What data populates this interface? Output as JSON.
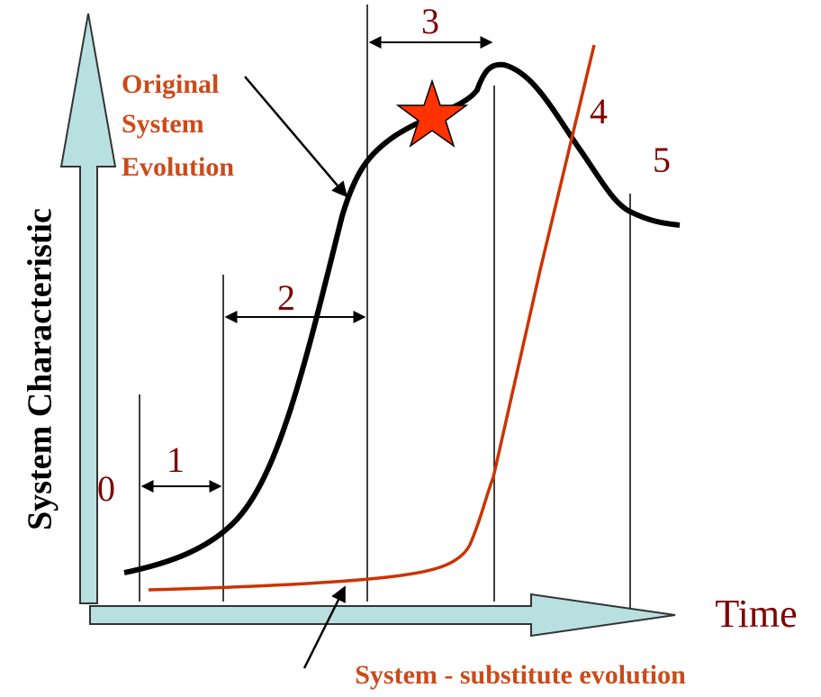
{
  "axes": {
    "y_label": "System Characteristic",
    "x_label": "Time"
  },
  "curves": [
    {
      "label": [
        "Original",
        "System",
        "Evolution"
      ]
    },
    {
      "label": "System - substitute evolution"
    }
  ],
  "stages": [
    "0",
    "1",
    "2",
    "3",
    "4",
    "5"
  ]
}
